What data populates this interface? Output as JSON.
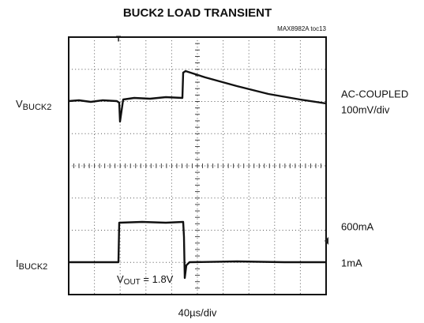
{
  "chart_data": {
    "type": "scope",
    "title": "BUCK2 LOAD TRANSIENT",
    "reference": "MAX8982A toc13",
    "traces": [
      {
        "label": {
          "main": "V",
          "sub": "BUCK2"
        },
        "notes": [
          "AC-COUPLED",
          "100mV/div"
        ]
      },
      {
        "label": {
          "main": "I",
          "sub": "BUCK2"
        },
        "notes": [
          "600mA",
          "1mA"
        ]
      }
    ],
    "annotation": {
      "main": "V",
      "sub": "OUT",
      "rest": " = 1.8V"
    },
    "timebase": "40µs/div"
  }
}
